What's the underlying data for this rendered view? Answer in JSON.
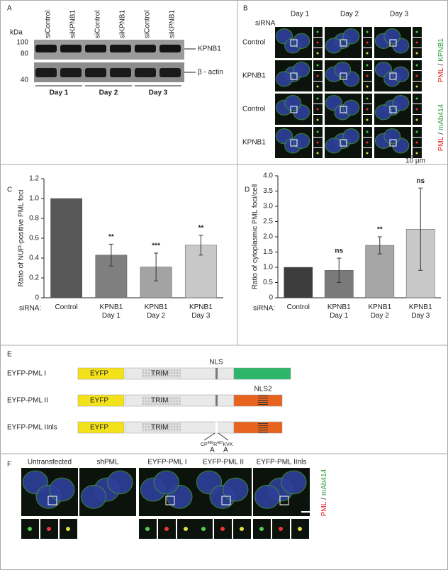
{
  "panel_labels": [
    "A",
    "B",
    "C",
    "D",
    "E",
    "F"
  ],
  "blot": {
    "unit": "kDa",
    "markers": [
      100,
      80,
      40
    ],
    "lanes": [
      "siControl",
      "siKPNB1",
      "siControl",
      "siKPNB1",
      "siControl",
      "siKPNB1"
    ],
    "bands": [
      "KPNB1",
      "β - actin"
    ],
    "days": [
      "Day 1",
      "Day 2",
      "Day 3"
    ]
  },
  "microscopy": {
    "rows_title": "siRNA",
    "days": [
      "Day 1",
      "Day 2",
      "Day 3"
    ],
    "rows": [
      "Control",
      "KPNB1",
      "Control",
      "KPNB1"
    ],
    "stains": [
      {
        "red": "PML",
        "sep": "/",
        "green": "KPNB1"
      },
      {
        "red": "PML",
        "sep": "/",
        "green": "mAb414"
      }
    ],
    "scale": "10 µm"
  },
  "chart_data": [
    {
      "type": "bar",
      "ylabel": "Ratio of NUP-positive PML foci",
      "category_title": "siRNA:",
      "categories": [
        "Control",
        "KPNB1 Day 1",
        "KPNB1 Day 2",
        "KPNB1 Day 3"
      ],
      "values": [
        1.0,
        0.43,
        0.31,
        0.53
      ],
      "errors": [
        null,
        0.11,
        0.14,
        0.1
      ],
      "significance": [
        null,
        "**",
        "***",
        "**"
      ],
      "colors": [
        "#575757",
        "#7f7f7f",
        "#a3a3a3",
        "#c8c8c8"
      ],
      "ylim": [
        0,
        1.2
      ],
      "yticks": [
        0,
        0.2,
        0.4,
        0.6,
        0.8,
        {
          "value": 1,
          "label": "1.0"
        },
        1.2
      ]
    },
    {
      "type": "bar",
      "ylabel": "Ratio of cytoplasmic PML foci/cell",
      "category_title": "siRNA:",
      "categories": [
        "Control",
        "KPNB1 Day 1",
        "KPNB1 Day 2",
        "KPNB1 Day 3"
      ],
      "values": [
        1.0,
        0.9,
        1.72,
        2.25
      ],
      "errors": [
        null,
        0.4,
        0.28,
        1.35
      ],
      "significance": [
        null,
        "ns",
        "**",
        "ns"
      ],
      "colors": [
        "#3c3c3c",
        "#7a7a7a",
        "#a6a6a6",
        "#c8c8c8"
      ],
      "ylim": [
        0,
        4
      ],
      "yticks": [
        0,
        0.5,
        {
          "value": 1,
          "label": "1.0"
        },
        1.5,
        {
          "value": 2,
          "label": "2.0"
        },
        2.5,
        {
          "value": 3,
          "label": "3.0"
        },
        3.5,
        {
          "value": 4,
          "label": "4.0"
        }
      ]
    }
  ],
  "constructs": {
    "names": [
      "EYFP-PML I",
      "EYFP-PML II",
      "EYFP-PML IInls"
    ],
    "eyfp": "EYFP",
    "trim": "TRIM",
    "nls": "NLS",
    "nls2": "NLS2",
    "mutation": [
      "CP",
      "486",
      "R",
      "487",
      "KVK"
    ],
    "substitution": [
      "A",
      "A"
    ]
  },
  "panel_f": {
    "columns": [
      "Untransfected",
      "shPML",
      "EYFP-PML I",
      "EYFP-PML II",
      "EYFP-PML IInls"
    ],
    "stain": {
      "red": "PML",
      "sep": "/",
      "green": "mAb414"
    }
  }
}
